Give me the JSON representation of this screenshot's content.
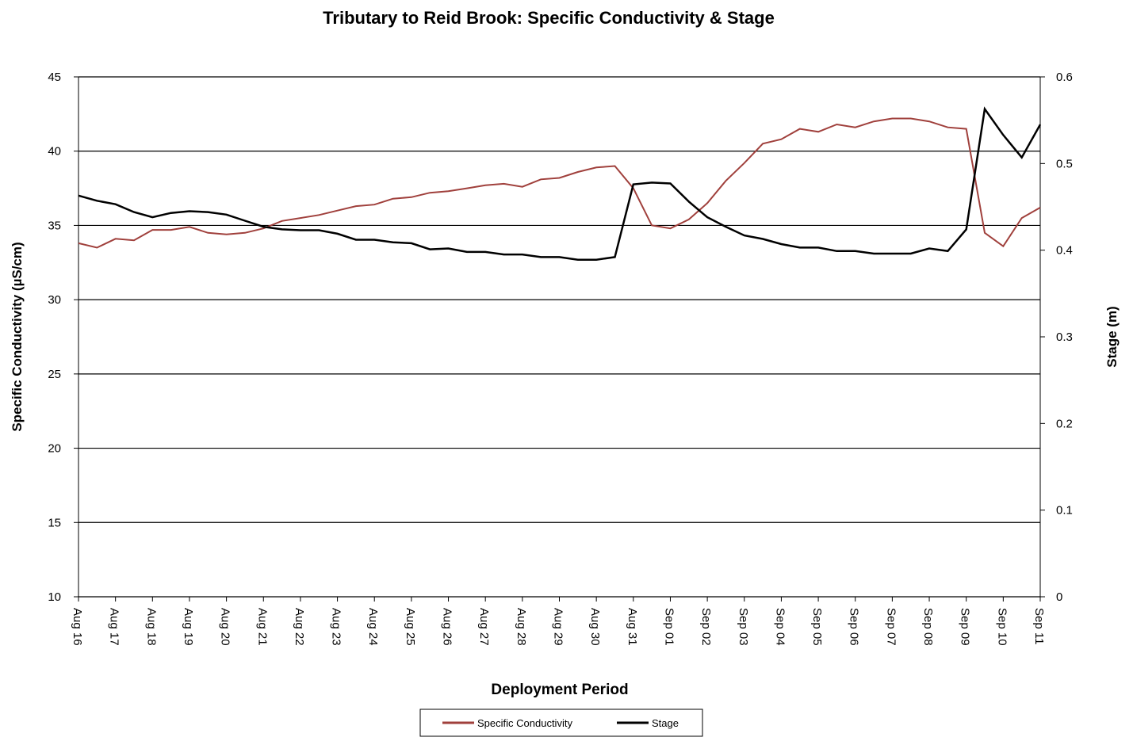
{
  "chart_data": {
    "type": "line",
    "title": "Tributary to Reid Brook: Specific Conductivity & Stage",
    "x_label": "Deployment Period",
    "y_label": "Specific Conductivity  (µS/cm)",
    "y2_label": "Stage (m)",
    "categories": [
      "Aug 16",
      null,
      "Aug 17",
      null,
      "Aug 18",
      null,
      "Aug 19",
      null,
      "Aug 20",
      null,
      "Aug 21",
      null,
      "Aug 22",
      null,
      "Aug 23",
      null,
      "Aug 24",
      null,
      "Aug 25",
      null,
      "Aug 26",
      null,
      "Aug 27",
      null,
      "Aug 28",
      null,
      "Aug 29",
      null,
      "Aug 30",
      null,
      "Aug 31",
      null,
      "Sep 01",
      null,
      "Sep 02",
      null,
      "Sep 03",
      null,
      "Sep 04",
      null,
      "Sep 05",
      null,
      "Sep 06",
      null,
      "Sep 07",
      null,
      "Sep 08",
      null,
      "Sep 09",
      null,
      "Sep 10",
      null,
      "Sep 11"
    ],
    "series": [
      {
        "name": "Specific Conductivity",
        "color": "#a0403c",
        "axis": "y",
        "values": [
          33.8,
          33.5,
          34.1,
          34.0,
          34.7,
          34.7,
          34.9,
          34.5,
          34.4,
          34.5,
          34.8,
          35.3,
          35.5,
          35.7,
          36.0,
          36.3,
          36.4,
          36.8,
          36.9,
          37.2,
          37.3,
          37.5,
          37.7,
          37.8,
          37.6,
          38.1,
          38.2,
          38.6,
          38.9,
          39.0,
          37.5,
          35.0,
          34.8,
          35.4,
          36.5,
          38.0,
          39.2,
          40.5,
          40.8,
          41.5,
          41.3,
          41.8,
          41.6,
          42.0,
          42.2,
          42.2,
          42.0,
          41.6,
          41.5,
          34.5,
          33.6,
          35.5,
          36.2
        ]
      },
      {
        "name": "Stage",
        "color": "#000000",
        "axis": "y2",
        "values": [
          0.463,
          0.457,
          0.453,
          0.444,
          0.438,
          0.443,
          0.445,
          0.444,
          0.441,
          0.434,
          0.427,
          0.424,
          0.423,
          0.423,
          0.419,
          0.412,
          0.412,
          0.409,
          0.408,
          0.401,
          0.402,
          0.398,
          0.398,
          0.395,
          0.395,
          0.392,
          0.392,
          0.389,
          0.389,
          0.392,
          0.476,
          0.478,
          0.477,
          0.456,
          0.438,
          0.427,
          0.417,
          0.413,
          0.407,
          0.403,
          0.403,
          0.399,
          0.399,
          0.396,
          0.396,
          0.396,
          0.402,
          0.399,
          0.424,
          0.563,
          0.533,
          0.507,
          0.545
        ]
      }
    ],
    "ylim": [
      10,
      45
    ],
    "yticks": [
      10,
      15,
      20,
      25,
      30,
      35,
      40,
      45
    ],
    "y2lim": [
      0,
      0.6
    ],
    "y2ticks": [
      0,
      0.1,
      0.2,
      0.3,
      0.4,
      0.5,
      0.6
    ],
    "grid": true,
    "legend": "bottom"
  }
}
